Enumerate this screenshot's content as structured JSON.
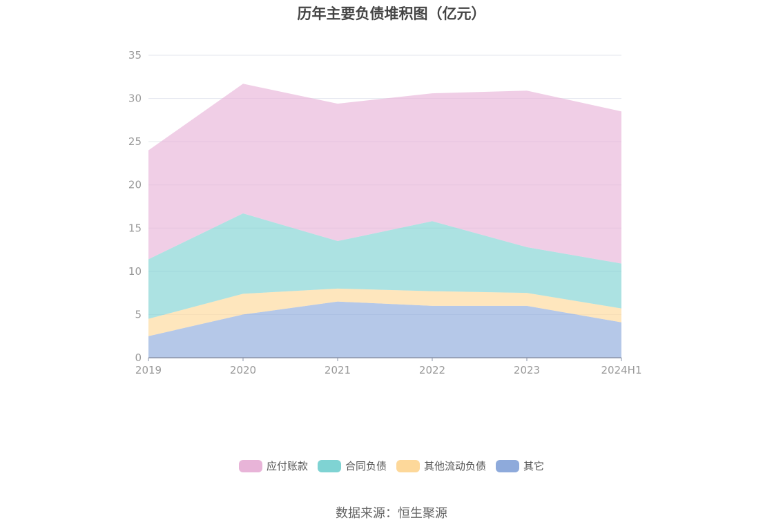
{
  "title": "历年主要负债堆积图（亿元）",
  "source": "数据来源：恒生聚源",
  "chart_data": {
    "type": "area",
    "stacked": true,
    "categories": [
      "2019",
      "2020",
      "2021",
      "2022",
      "2023",
      "2024H1"
    ],
    "ylim": [
      0,
      35
    ],
    "yticks": [
      0,
      5,
      10,
      15,
      20,
      25,
      30,
      35
    ],
    "grid": true,
    "legend_position": "bottom",
    "series": [
      {
        "name": "其它",
        "values": [
          2.5,
          5.0,
          6.5,
          6.0,
          6.0,
          4.1
        ],
        "color": "#8eaadb"
      },
      {
        "name": "其他流动负债",
        "values": [
          2.0,
          2.4,
          1.5,
          1.7,
          1.5,
          1.6
        ],
        "color": "#fdd89a"
      },
      {
        "name": "合同负债",
        "values": [
          6.9,
          9.3,
          5.5,
          8.1,
          5.3,
          5.2
        ],
        "color": "#7fd3d3"
      },
      {
        "name": "应付账款",
        "values": [
          12.6,
          15.0,
          15.9,
          14.8,
          18.1,
          17.6
        ],
        "color": "#e8b4d8"
      }
    ]
  }
}
